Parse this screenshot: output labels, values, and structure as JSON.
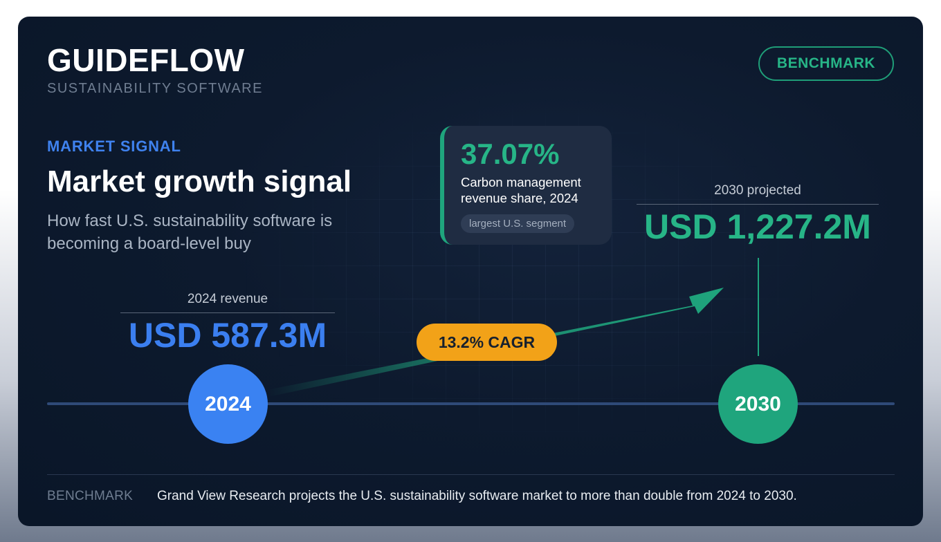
{
  "brand": {
    "name": "GUIDEFLOW",
    "subtitle": "SUSTAINABILITY SOFTWARE",
    "badge": "BENCHMARK"
  },
  "headline": {
    "eyebrow": "MARKET SIGNAL",
    "title": "Market growth signal",
    "description": "How fast U.S. sustainability software is becoming a board-level buy"
  },
  "stat": {
    "value": "37.07%",
    "label_line1": "Carbon management",
    "label_line2": "revenue share, 2024",
    "tag": "largest U.S. segment"
  },
  "timeline": {
    "start": {
      "year": "2024",
      "caption": "2024 revenue",
      "value": "USD 587.3M"
    },
    "end": {
      "year": "2030",
      "caption": "2030 projected",
      "value": "USD 1,227.2M"
    },
    "cagr_label": "13.2% CAGR"
  },
  "footer": {
    "label": "BENCHMARK",
    "text": "Grand View Research projects the U.S. sustainability software market to more than double from 2024 to 2030."
  },
  "colors": {
    "background": "#0d1a2e",
    "blue": "#3a82f2",
    "green": "#1fa57d",
    "amber": "#f2a218"
  }
}
